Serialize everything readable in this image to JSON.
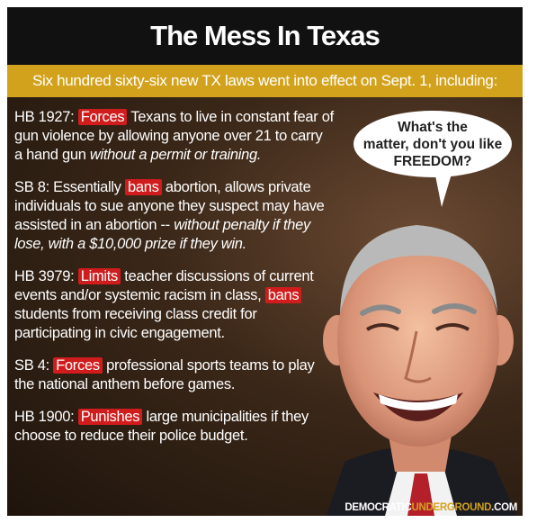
{
  "title": "The Mess In Texas",
  "banner": "Six hundred sixty-six new TX laws went into effect on Sept. 1, including:",
  "laws": [
    {
      "bill": "HB 1927:",
      "highlight": "Forces",
      "text": "Texans to live in constant fear of gun violence by allowing anyone over 21 to carry a hand gun",
      "italic": "without a permit or training."
    },
    {
      "bill": "SB 8: Essentially",
      "highlight": "bans",
      "text": "abortion, allows private individuals to sue anyone they suspect may have assisted in an abortion --",
      "italic": "without penalty if they lose, with a $10,000 prize if they win."
    },
    {
      "bill": "HB 3979:",
      "highlight": "Limits",
      "text": "teacher discussions of current events and/or systemic racism in class,",
      "highlight2": "bans",
      "text2": "students from receiving class credit for participating in civic engagement."
    },
    {
      "bill": "SB 4:",
      "highlight": "Forces",
      "text": "professional sports teams to play the national anthem before games."
    },
    {
      "bill": "HB 1900:",
      "highlight": "Punishes",
      "text": "large municipalities if they choose to reduce their police budget."
    }
  ],
  "speech_bubble": {
    "line1": "What's the",
    "line2": "matter, don't you like",
    "line3": "FREEDOM?"
  },
  "footer": {
    "part1": "DEMOCRATIC",
    "part2": "UNDERGROUND",
    "part3": ".COM"
  },
  "colors": {
    "title_bg": "#111111",
    "banner_bg": "#d3a21d",
    "highlight": "#d01c1c",
    "background": "#2e1f13"
  }
}
